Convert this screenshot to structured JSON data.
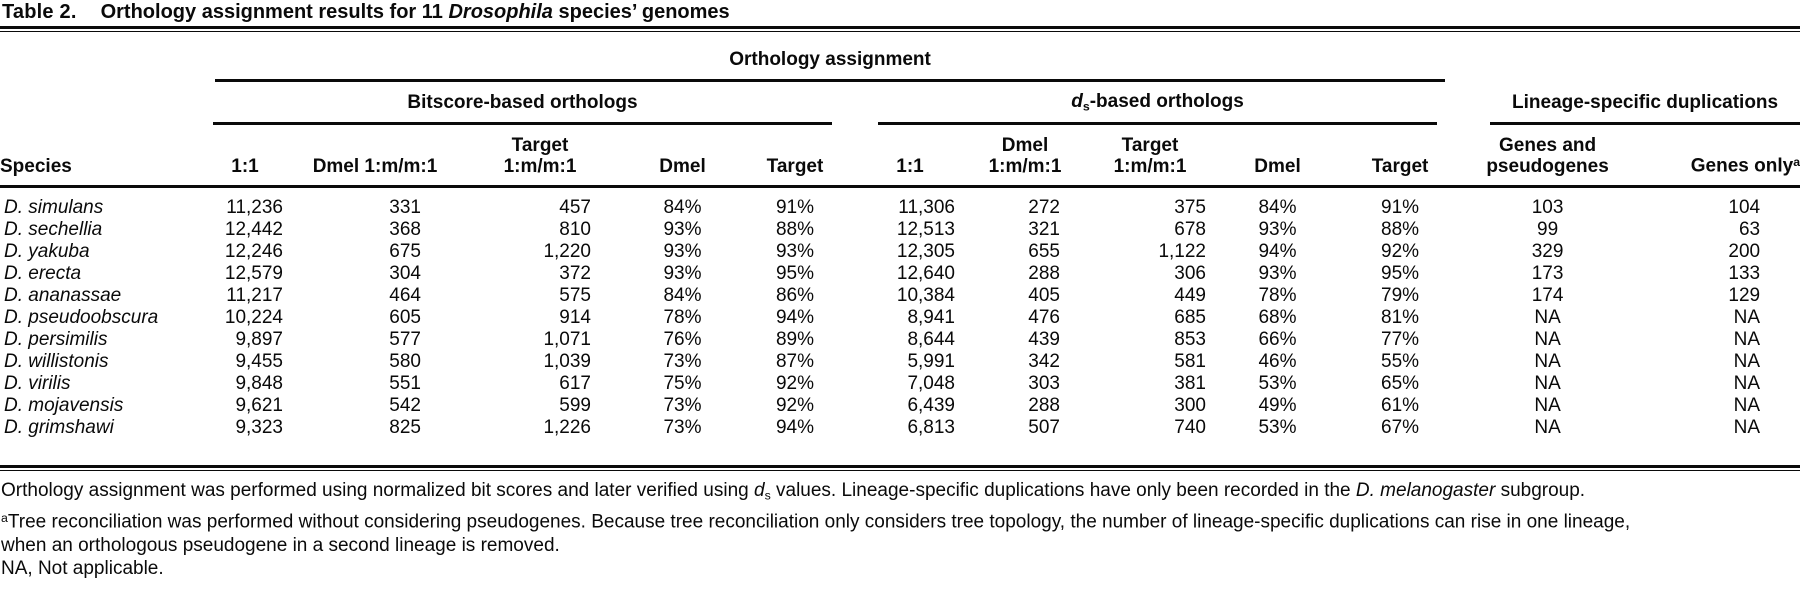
{
  "caption": {
    "label": "Table 2.",
    "text_before_italic": "Orthology assignment results for 11 ",
    "italic_word": "Drosophila",
    "text_after_italic": " species’ genomes"
  },
  "table": {
    "span_header": "Orthology assignment",
    "groups": {
      "bitscore": "Bitscore-based orthologs",
      "ds_d": "d",
      "ds_sub": "s",
      "ds_rest": "-based orthologs",
      "lineage": "Lineage-specific duplications"
    },
    "columns": {
      "species": "Species",
      "bit_one": "1:1",
      "bit_dmel_m": "Dmel 1:m/m:1",
      "bit_target_m1": "Target",
      "bit_target_m2": "1:m/m:1",
      "bit_dmel_pct": "Dmel",
      "bit_target_pct": "Target",
      "ds_one": "1:1",
      "ds_dmel_m1": "Dmel",
      "ds_dmel_m2": "1:m/m:1",
      "ds_target_m1": "Target",
      "ds_target_m2": "1:m/m:1",
      "ds_dmel_pct": "Dmel",
      "ds_target_pct": "Target",
      "dup_genes1": "Genes and",
      "dup_genes2": "pseudogenes",
      "dup_genes_only": "Genes only",
      "dup_genes_only_sup": "a"
    },
    "rows": [
      {
        "cells": [
          "D. simulans",
          "11,236",
          "331",
          "457",
          "84%",
          "91%",
          "11,306",
          "272",
          "375",
          "84%",
          "91%",
          "103",
          "104"
        ]
      },
      {
        "cells": [
          "D. sechellia",
          "12,442",
          "368",
          "810",
          "93%",
          "88%",
          "12,513",
          "321",
          "678",
          "93%",
          "88%",
          "99",
          "63"
        ]
      },
      {
        "cells": [
          "D. yakuba",
          "12,246",
          "675",
          "1,220",
          "93%",
          "93%",
          "12,305",
          "655",
          "1,122",
          "94%",
          "92%",
          "329",
          "200"
        ]
      },
      {
        "cells": [
          "D. erecta",
          "12,579",
          "304",
          "372",
          "93%",
          "95%",
          "12,640",
          "288",
          "306",
          "93%",
          "95%",
          "173",
          "133"
        ]
      },
      {
        "cells": [
          "D. ananassae",
          "11,217",
          "464",
          "575",
          "84%",
          "86%",
          "10,384",
          "405",
          "449",
          "78%",
          "79%",
          "174",
          "129"
        ]
      },
      {
        "cells": [
          "D. pseudoobscura",
          "10,224",
          "605",
          "914",
          "78%",
          "94%",
          "8,941",
          "476",
          "685",
          "68%",
          "81%",
          "NA",
          "NA"
        ]
      },
      {
        "cells": [
          "D. persimilis",
          "9,897",
          "577",
          "1,071",
          "76%",
          "89%",
          "8,644",
          "439",
          "853",
          "66%",
          "77%",
          "NA",
          "NA"
        ]
      },
      {
        "cells": [
          "D. willistonis",
          "9,455",
          "580",
          "1,039",
          "73%",
          "87%",
          "5,991",
          "342",
          "581",
          "46%",
          "55%",
          "NA",
          "NA"
        ]
      },
      {
        "cells": [
          "D. virilis",
          "9,848",
          "551",
          "617",
          "75%",
          "92%",
          "7,048",
          "303",
          "381",
          "53%",
          "65%",
          "NA",
          "NA"
        ]
      },
      {
        "cells": [
          "D. mojavensis",
          "9,621",
          "542",
          "599",
          "73%",
          "92%",
          "6,439",
          "288",
          "300",
          "49%",
          "61%",
          "NA",
          "NA"
        ]
      },
      {
        "cells": [
          "D. grimshawi",
          "9,323",
          "825",
          "1,226",
          "73%",
          "94%",
          "6,813",
          "507",
          "740",
          "53%",
          "67%",
          "NA",
          "NA"
        ]
      }
    ]
  },
  "footnotes": {
    "general_pre": "Orthology assignment was performed using normalized bit scores and later verified using ",
    "ds_d": "d",
    "ds_sub": "s",
    "general_mid": " values. Lineage-specific duplications have only been recorded in the ",
    "melanogaster": "D. melanogaster",
    "general_post": " subgroup.",
    "a_sup": "a",
    "a_text": "Tree reconciliation was performed without considering pseudogenes. Because tree reconciliation only considers tree topology, the number of lineage-specific duplications can rise in one lineage,",
    "a_cont": "when an orthologous pseudogene in a second lineage is removed.",
    "na": "NA, Not applicable."
  }
}
